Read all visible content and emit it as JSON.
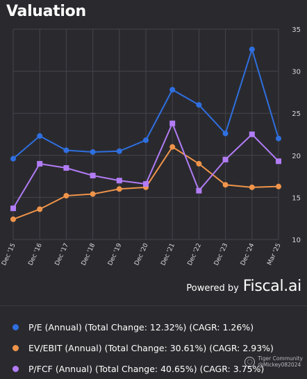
{
  "header": {
    "title": "Valuation"
  },
  "branding": {
    "powered_by": "Powered by",
    "brand": "Fiscal.ai"
  },
  "watermark": {
    "community": "Tiger Community",
    "handle": "@Mickey082024"
  },
  "chart_data": {
    "type": "line",
    "title": "Valuation",
    "categories": [
      "Dec '15",
      "Dec '16",
      "Dec '17",
      "Dec '18",
      "Dec '19",
      "Dec '20",
      "Dec '21",
      "Dec '22",
      "Dec '23",
      "Dec '24",
      "Mar '25"
    ],
    "ylim": [
      10,
      35
    ],
    "yticks": [
      10,
      15,
      20,
      25,
      30,
      35
    ],
    "yaxis_position": "right",
    "grid": true,
    "legend_position": "bottom",
    "series": [
      {
        "name": "P/E (Annual) (Total Change: 12.32%) (CAGR: 1.26%)",
        "color": "#2f6fe0",
        "marker": "circle",
        "values": [
          19.6,
          22.3,
          20.6,
          20.4,
          20.5,
          21.8,
          27.8,
          26.0,
          22.6,
          32.6,
          22.0
        ]
      },
      {
        "name": "EV/EBIT (Annual) (Total Change: 30.61%) (CAGR: 2.93%)",
        "color": "#f0944a",
        "marker": "circle",
        "values": [
          12.4,
          13.6,
          15.2,
          15.4,
          16.0,
          16.2,
          21.0,
          19.0,
          16.5,
          16.2,
          16.3
        ]
      },
      {
        "name": "P/FCF (Annual) (Total Change: 40.65%) (CAGR: 3.75%)",
        "color": "#b27cf6",
        "marker": "square",
        "values": [
          13.7,
          19.0,
          18.5,
          17.6,
          17.0,
          16.6,
          23.8,
          15.8,
          19.5,
          22.5,
          19.3
        ]
      }
    ]
  }
}
